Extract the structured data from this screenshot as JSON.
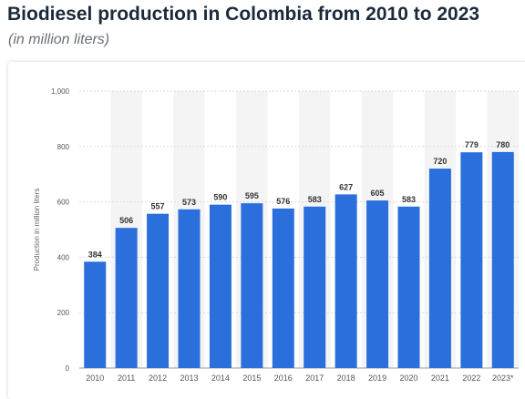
{
  "header": {
    "title": "Biodiesel production in Colombia from 2010 to 2023",
    "subtitle": "(in million liters)"
  },
  "colors": {
    "bar": "#2a6fdb",
    "band": "#f4f4f4",
    "grid": "#d9d9d9",
    "tick_text": "#555555",
    "label_text": "#333333"
  },
  "chart_data": {
    "type": "bar",
    "title": "Biodiesel production in Colombia from 2010 to 2023",
    "subtitle": "(in million liters)",
    "xlabel": "",
    "ylabel": "Production in million liters",
    "categories": [
      "2010",
      "2011",
      "2012",
      "2013",
      "2014",
      "2015",
      "2016",
      "2017",
      "2018",
      "2019",
      "2020",
      "2021",
      "2022",
      "2023*"
    ],
    "values": [
      384,
      506,
      557,
      573,
      590,
      595,
      576,
      583,
      627,
      605,
      583,
      720,
      779,
      780
    ],
    "ylim": [
      0,
      1000
    ],
    "yticks": [
      0,
      200,
      400,
      600,
      800,
      1000
    ],
    "ytick_labels": [
      "0",
      "200",
      "400",
      "600",
      "800",
      "1,000"
    ],
    "grid": true,
    "data_labels": true
  }
}
